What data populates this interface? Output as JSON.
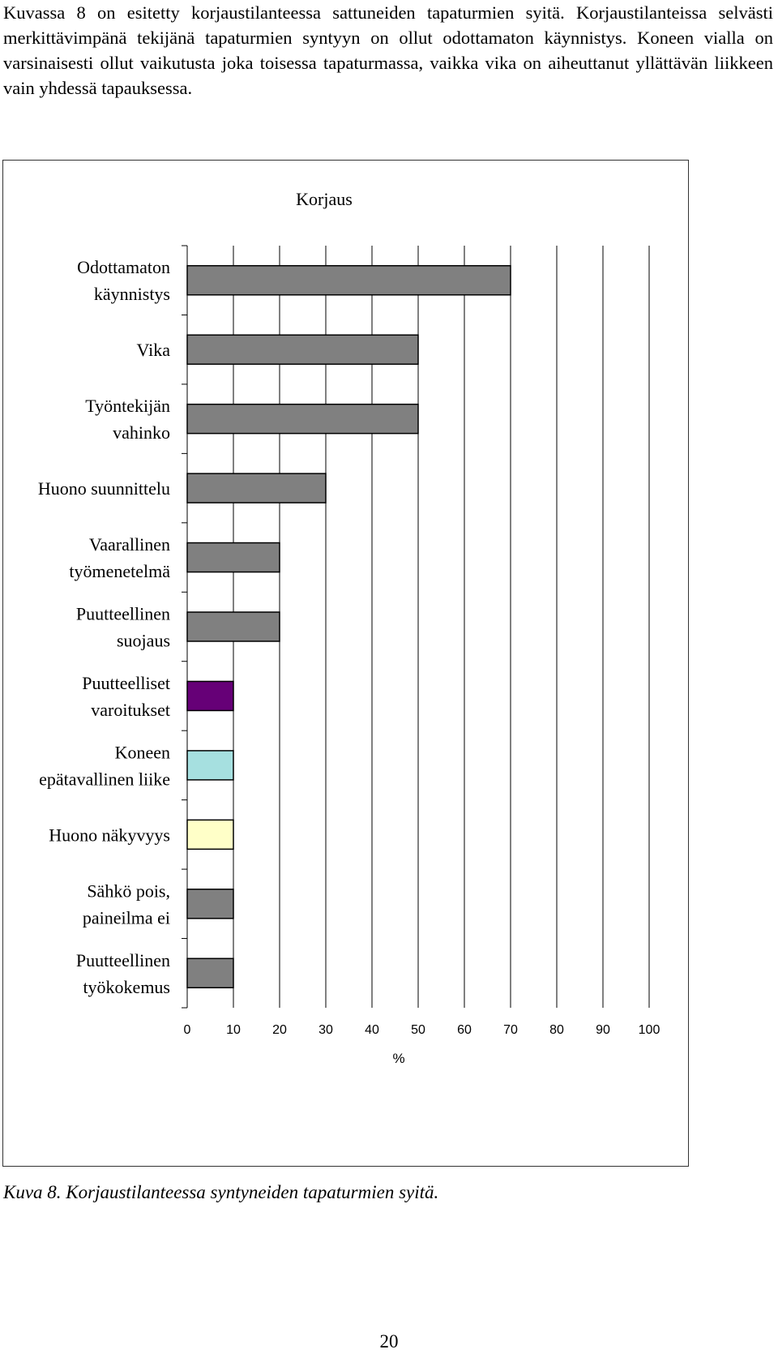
{
  "intro_text": "Kuvassa 8 on esitetty korjaustilanteessa sattuneiden tapaturmien syitä. Korjaustilanteissa selvästi merkittävimpänä tekijänä tapaturmien syntyyn on ollut odottamaton käynnistys. Koneen vialla on varsinaisesti ollut vaikutusta joka toisessa tapaturmassa, vaikka vika on aiheuttanut yllättävän liikkeen vain yhdessä tapauksessa.",
  "caption": "Kuva 8. Korjaustilanteessa syntyneiden tapaturmien syitä.",
  "page_number": "20",
  "chart_data": {
    "type": "bar",
    "orientation": "horizontal",
    "title": "Korjaus",
    "xlabel": "%",
    "ylabel": "",
    "xlim": [
      0,
      100
    ],
    "xticks": [
      0,
      10,
      20,
      30,
      40,
      50,
      60,
      70,
      80,
      90,
      100
    ],
    "grid": "vertical",
    "categories": [
      [
        "Odottamaton",
        "käynnistys"
      ],
      [
        "Vika"
      ],
      [
        "Työntekijän",
        "vahinko"
      ],
      [
        "Huono suunnittelu"
      ],
      [
        "Vaarallinen",
        "työmenetelmä"
      ],
      [
        "Puutteellinen",
        "suojaus"
      ],
      [
        "Puutteelliset",
        "varoitukset"
      ],
      [
        "Koneen",
        "epätavallinen liike"
      ],
      [
        "Huono näkyvyys"
      ],
      [
        "Sähkö pois,",
        "paineilma ei"
      ],
      [
        "Puutteellinen",
        "työkokemus"
      ]
    ],
    "values": [
      70,
      50,
      50,
      30,
      20,
      20,
      10,
      10,
      10,
      10,
      10
    ],
    "colors": [
      "#808080",
      "#808080",
      "#808080",
      "#808080",
      "#808080",
      "#808080",
      "#660077",
      "#a6e0e0",
      "#ffffc8",
      "#808080",
      "#808080"
    ]
  }
}
